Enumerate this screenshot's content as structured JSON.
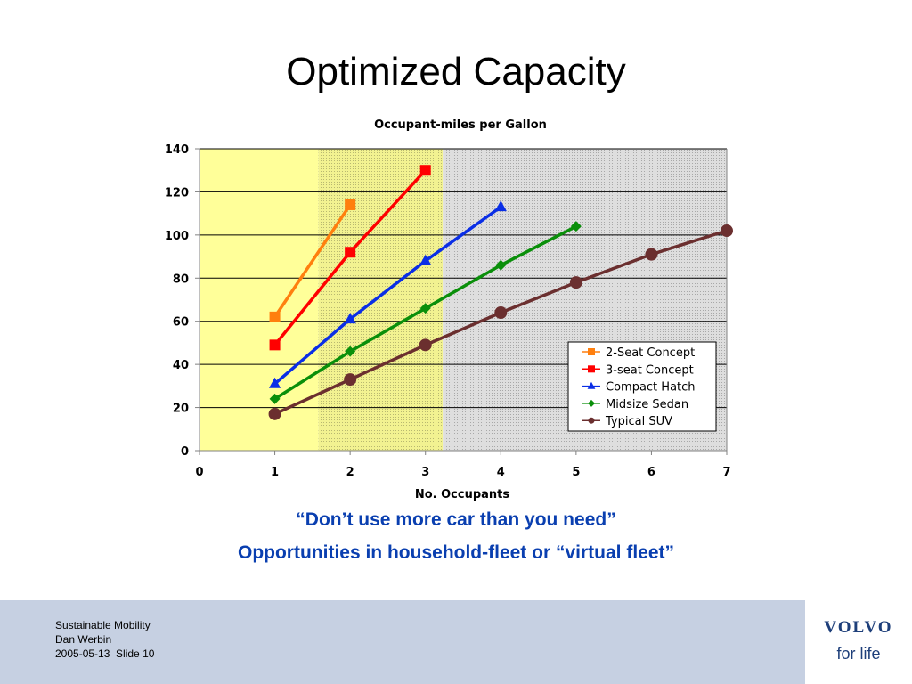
{
  "slide": {
    "title": "Optimized Capacity",
    "captions": [
      "“Don’t use more car than you need”",
      "Opportunities in household-fleet or “virtual fleet”"
    ],
    "footer_lines": [
      "Sustainable Mobility",
      "Dan Werbin",
      "2005-05-13  Slide 10"
    ],
    "brand": "VOLVO",
    "tagline": "for life",
    "colors": {
      "caption": "#0a3fb0",
      "footer_bg": "#c6d0e2",
      "brand": "#1e3f7a"
    }
  },
  "chart_data": {
    "type": "line",
    "title": "Occupant-miles per Gallon",
    "xlabel": "No. Occupants",
    "ylabel": "",
    "xlim": [
      0,
      7
    ],
    "ylim": [
      0,
      140
    ],
    "xticks": [
      0,
      1,
      2,
      3,
      4,
      5,
      6,
      7
    ],
    "yticks": [
      0,
      20,
      40,
      60,
      80,
      100,
      120,
      140
    ],
    "grid": "horizontal",
    "legend": "bottom-right",
    "background_bands": [
      {
        "from": 0,
        "to": 1.58,
        "color": "#ffff99",
        "pattern": "solid"
      },
      {
        "from": 1.58,
        "to": 3.23,
        "color": "#f0f090",
        "pattern": "dotted"
      },
      {
        "from": 3.23,
        "to": 7,
        "color": "#d9d9d9",
        "pattern": "dotted"
      }
    ],
    "series": [
      {
        "name": "2-Seat Concept",
        "color": "#ff7f0e",
        "marker": "square",
        "x": [
          1,
          2
        ],
        "values": [
          62,
          114
        ]
      },
      {
        "name": "3-seat Concept",
        "color": "#ff0000",
        "marker": "square",
        "x": [
          1,
          2,
          3
        ],
        "values": [
          49,
          92,
          130
        ]
      },
      {
        "name": "Compact Hatch",
        "color": "#0a2ee6",
        "marker": "triangle",
        "x": [
          1,
          2,
          3,
          4
        ],
        "values": [
          31,
          61,
          88,
          113
        ]
      },
      {
        "name": "Midsize Sedan",
        "color": "#0a8f0a",
        "marker": "diamond",
        "x": [
          1,
          2,
          3,
          4,
          5
        ],
        "values": [
          24,
          46,
          66,
          86,
          104
        ]
      },
      {
        "name": "Typical SUV",
        "color": "#6b2f2f",
        "marker": "circle",
        "x": [
          1,
          2,
          3,
          4,
          5,
          6,
          7
        ],
        "values": [
          17,
          33,
          49,
          64,
          78,
          91,
          102
        ]
      }
    ]
  }
}
